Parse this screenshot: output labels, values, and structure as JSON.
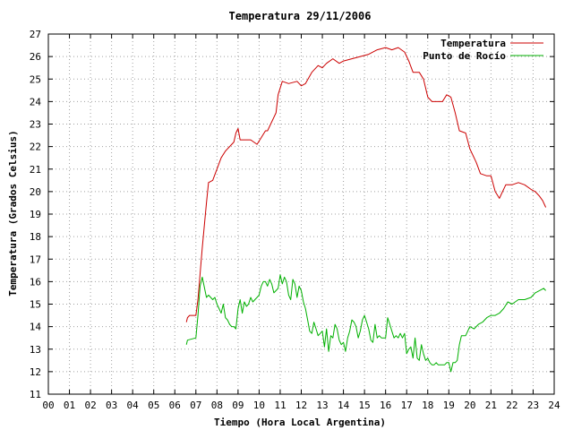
{
  "chart_data": {
    "type": "line",
    "title": "Temperatura 29/11/2006",
    "xlabel": "Tiempo (Hora Local Argentina)",
    "ylabel": "Temperatura (Grados Celsius)",
    "xlim": [
      0,
      24
    ],
    "ylim": [
      11,
      27
    ],
    "x_ticks": [
      "00",
      "01",
      "02",
      "03",
      "04",
      "05",
      "06",
      "07",
      "08",
      "09",
      "10",
      "11",
      "12",
      "13",
      "14",
      "15",
      "16",
      "17",
      "18",
      "19",
      "20",
      "21",
      "22",
      "23",
      "24"
    ],
    "y_ticks": [
      11,
      12,
      13,
      14,
      15,
      16,
      17,
      18,
      19,
      20,
      21,
      22,
      23,
      24,
      25,
      26,
      27
    ],
    "grid": true,
    "legend_position": "top-right",
    "series": [
      {
        "name": "Temperatura",
        "color": "#cc0000",
        "x": [
          6.55,
          6.6,
          6.7,
          7.0,
          7.1,
          7.3,
          7.5,
          7.6,
          7.8,
          8.0,
          8.2,
          8.4,
          8.6,
          8.8,
          8.9,
          9.0,
          9.1,
          9.3,
          9.6,
          9.9,
          10.1,
          10.3,
          10.4,
          10.8,
          10.9,
          11.1,
          11.4,
          11.8,
          12.0,
          12.2,
          12.5,
          12.8,
          13.0,
          13.2,
          13.5,
          13.8,
          14.0,
          14.4,
          14.8,
          15.2,
          15.6,
          16.0,
          16.3,
          16.6,
          16.9,
          17.1,
          17.3,
          17.6,
          17.8,
          18.0,
          18.2,
          18.4,
          18.7,
          18.9,
          19.1,
          19.3,
          19.5,
          19.8,
          20.0,
          20.3,
          20.5,
          20.8,
          21.0,
          21.2,
          21.4,
          21.7,
          22.0,
          22.3,
          22.6,
          22.9,
          23.1,
          23.3,
          23.45,
          23.6
        ],
        "values": [
          14.2,
          14.4,
          14.5,
          14.5,
          15.2,
          17.5,
          19.5,
          20.4,
          20.5,
          21.0,
          21.5,
          21.8,
          22.0,
          22.2,
          22.6,
          22.8,
          22.3,
          22.3,
          22.3,
          22.1,
          22.4,
          22.7,
          22.7,
          23.5,
          24.3,
          24.9,
          24.8,
          24.9,
          24.7,
          24.8,
          25.3,
          25.6,
          25.5,
          25.7,
          25.9,
          25.7,
          25.8,
          25.9,
          26.0,
          26.1,
          26.3,
          26.4,
          26.3,
          26.4,
          26.2,
          25.8,
          25.3,
          25.3,
          25.0,
          24.2,
          24.0,
          24.0,
          24.0,
          24.3,
          24.2,
          23.5,
          22.7,
          22.6,
          21.9,
          21.3,
          20.8,
          20.7,
          20.7,
          20.0,
          19.7,
          20.3,
          20.3,
          20.4,
          20.3,
          20.1,
          20.0,
          19.8,
          19.6,
          19.3
        ]
      },
      {
        "name": "Punto de Rocío",
        "color": "#00b000",
        "x": [
          6.55,
          6.6,
          7.0,
          7.1,
          7.2,
          7.3,
          7.5,
          7.6,
          7.8,
          7.9,
          8.0,
          8.1,
          8.2,
          8.3,
          8.4,
          8.5,
          8.6,
          8.7,
          8.8,
          8.9,
          9.0,
          9.1,
          9.2,
          9.3,
          9.4,
          9.5,
          9.6,
          9.7,
          9.8,
          9.9,
          10.0,
          10.1,
          10.2,
          10.3,
          10.4,
          10.5,
          10.6,
          10.7,
          10.8,
          10.9,
          11.0,
          11.1,
          11.2,
          11.3,
          11.4,
          11.5,
          11.6,
          11.7,
          11.8,
          11.9,
          12.0,
          12.1,
          12.2,
          12.3,
          12.4,
          12.5,
          12.6,
          12.7,
          12.8,
          12.9,
          13.0,
          13.1,
          13.2,
          13.3,
          13.4,
          13.5,
          13.6,
          13.7,
          13.8,
          13.9,
          14.0,
          14.1,
          14.2,
          14.3,
          14.4,
          14.5,
          14.6,
          14.7,
          14.8,
          14.9,
          15.0,
          15.1,
          15.2,
          15.3,
          15.4,
          15.5,
          15.6,
          15.7,
          15.8,
          15.9,
          16.0,
          16.1,
          16.2,
          16.3,
          16.4,
          16.5,
          16.6,
          16.7,
          16.8,
          16.9,
          17.0,
          17.1,
          17.2,
          17.3,
          17.4,
          17.5,
          17.6,
          17.7,
          17.8,
          17.9,
          18.0,
          18.1,
          18.2,
          18.3,
          18.4,
          18.5,
          18.6,
          18.7,
          18.8,
          18.9,
          19.0,
          19.1,
          19.2,
          19.3,
          19.4,
          19.5,
          19.6,
          19.8,
          20.0,
          20.2,
          20.4,
          20.6,
          20.8,
          21.0,
          21.2,
          21.4,
          21.6,
          21.8,
          22.0,
          22.3,
          22.6,
          22.9,
          23.1,
          23.3,
          23.5,
          23.6
        ],
        "values": [
          13.2,
          13.4,
          13.5,
          14.5,
          15.8,
          16.2,
          15.3,
          15.4,
          15.2,
          15.3,
          15.0,
          14.8,
          14.6,
          15.0,
          14.4,
          14.3,
          14.1,
          14.0,
          14.0,
          13.9,
          14.8,
          15.2,
          14.6,
          15.1,
          14.9,
          15.0,
          15.3,
          15.1,
          15.2,
          15.3,
          15.4,
          15.8,
          16.0,
          16.0,
          15.8,
          16.1,
          15.9,
          15.5,
          15.6,
          15.7,
          16.3,
          15.9,
          16.2,
          16.0,
          15.4,
          15.2,
          16.1,
          15.9,
          15.3,
          15.8,
          15.6,
          15.1,
          14.8,
          14.3,
          13.8,
          13.7,
          14.2,
          13.9,
          13.6,
          13.7,
          13.8,
          13.1,
          13.9,
          12.9,
          13.6,
          13.5,
          14.1,
          13.9,
          13.4,
          13.2,
          13.3,
          12.9,
          13.5,
          13.8,
          14.3,
          14.2,
          14.0,
          13.5,
          13.8,
          14.3,
          14.5,
          14.2,
          13.9,
          13.4,
          13.3,
          14.1,
          13.5,
          13.6,
          13.5,
          13.5,
          13.5,
          14.4,
          14.1,
          13.8,
          13.5,
          13.6,
          13.5,
          13.7,
          13.5,
          13.7,
          12.8,
          13.0,
          13.1,
          12.6,
          13.5,
          12.6,
          12.5,
          13.2,
          12.8,
          12.5,
          12.6,
          12.4,
          12.3,
          12.3,
          12.4,
          12.3,
          12.3,
          12.3,
          12.3,
          12.4,
          12.4,
          12.0,
          12.4,
          12.4,
          12.5,
          13.2,
          13.6,
          13.6,
          14.0,
          13.9,
          14.1,
          14.2,
          14.4,
          14.5,
          14.5,
          14.6,
          14.8,
          15.1,
          15.0,
          15.2,
          15.2,
          15.3,
          15.5,
          15.6,
          15.7,
          15.6
        ]
      }
    ]
  }
}
